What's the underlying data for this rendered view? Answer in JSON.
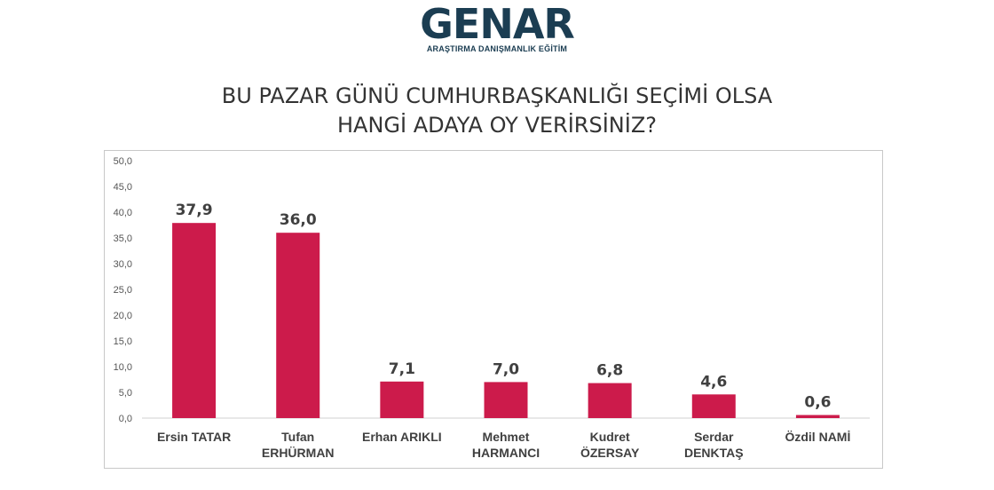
{
  "logo": {
    "name": "GENAR",
    "tagline": "ARAŞTIRMA DANIŞMANLIK EĞİTİM",
    "accent_color": "#f0a21c",
    "brand_color": "#1b3d52"
  },
  "chart_data": {
    "type": "bar",
    "title_lines": [
      "BU PAZAR GÜNÜ CUMHURBAŞKANLIĞI SEÇİMİ OLSA",
      "HANGİ ADAYA OY VERİRSİNİZ?"
    ],
    "categories": [
      [
        "Ersin TATAR"
      ],
      [
        "Tufan",
        "ERHÜRMAN"
      ],
      [
        "Erhan ARIKLI"
      ],
      [
        "Mehmet",
        "HARMANCI"
      ],
      [
        "Kudret",
        "ÖZERSAY"
      ],
      [
        "Serdar",
        "DENKTAŞ"
      ],
      [
        "Özdil NAMİ"
      ]
    ],
    "values": [
      37.9,
      36.0,
      7.1,
      7.0,
      6.8,
      4.6,
      0.6
    ],
    "value_labels": [
      "37,9",
      "36,0",
      "7,1",
      "7,0",
      "6,8",
      "4,6",
      "0,6"
    ],
    "ylim": [
      0,
      50
    ],
    "yticks": [
      "0,0",
      "5,0",
      "10,0",
      "15,0",
      "20,0",
      "25,0",
      "30,0",
      "35,0",
      "40,0",
      "45,0",
      "50,0"
    ],
    "bar_color": "#cc1b4b",
    "grid": false,
    "legend": "none"
  }
}
